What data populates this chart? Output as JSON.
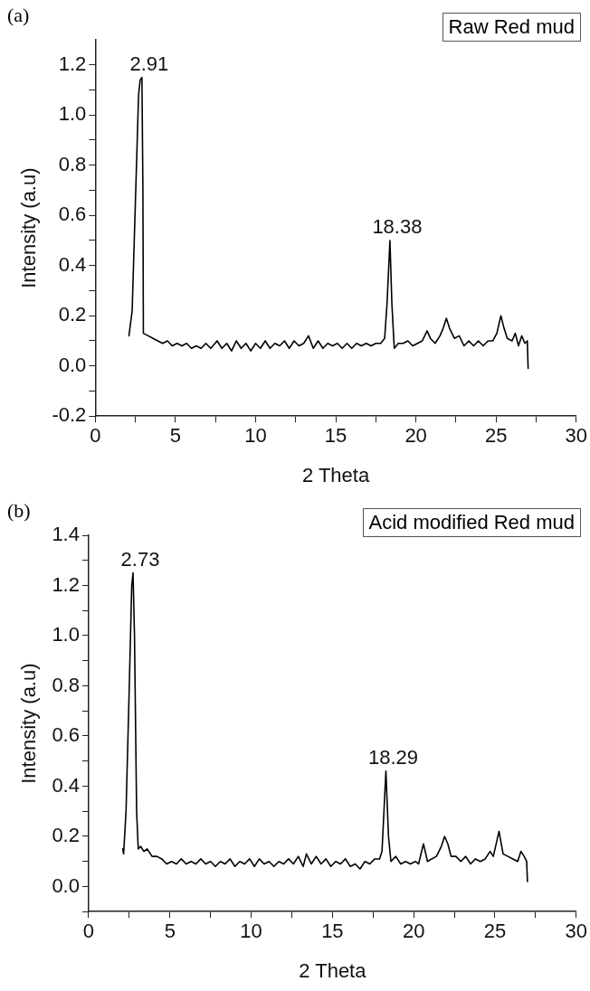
{
  "chart_data": [
    {
      "type": "line",
      "title": "(a)",
      "xlabel": "2 Theta",
      "ylabel": "Intensity (a.u)",
      "xlim": [
        0,
        30
      ],
      "ylim": [
        -0.2,
        1.3
      ],
      "xticks": [
        0,
        {
          "value": 2.5,
          "label": null
        },
        5,
        {
          "value": 7.5,
          "label": null
        },
        10,
        {
          "value": 12.5,
          "label": null
        },
        15,
        {
          "value": 17.5,
          "label": null
        },
        20,
        {
          "value": 22.5,
          "label": null
        },
        25,
        {
          "value": 27.5,
          "label": null
        },
        30
      ],
      "yticks": [
        {
          "value": -0.2,
          "label": "-0.2"
        },
        {
          "value": -0.1,
          "label": null
        },
        {
          "value": 0,
          "label": "0.0"
        },
        {
          "value": 0.1,
          "label": null
        },
        0.2,
        {
          "value": 0.3,
          "label": null
        },
        0.4,
        {
          "value": 0.5,
          "label": null
        },
        0.6,
        {
          "value": 0.7,
          "label": null
        },
        0.8,
        {
          "value": 0.9,
          "label": null
        },
        {
          "value": 1,
          "label": "1.0"
        },
        {
          "value": 1.1,
          "label": null
        },
        1.2
      ],
      "grid": false,
      "legend": false,
      "marker": "none",
      "line_style": "solid",
      "annotations": [
        "Raw Red mud",
        {
          "text": "2.91",
          "x": 2.91,
          "y": 1.15
        },
        {
          "text": "18.38",
          "x": 18.38,
          "y": 0.5
        }
      ],
      "series": [
        {
          "color": "#000000",
          "x": [
            2.1,
            2.3,
            2.5,
            2.7,
            2.8,
            2.91,
            2.97,
            3.0,
            3.3,
            3.6,
            3.9,
            4.2,
            4.5,
            4.8,
            5.1,
            5.4,
            5.7,
            6.0,
            6.3,
            6.6,
            6.9,
            7.2,
            7.6,
            7.9,
            8.2,
            8.5,
            8.8,
            9.1,
            9.4,
            9.7,
            10.0,
            10.3,
            10.6,
            10.9,
            11.2,
            11.5,
            11.8,
            12.1,
            12.4,
            12.7,
            13.0,
            13.3,
            13.6,
            13.9,
            14.2,
            14.5,
            14.8,
            15.1,
            15.4,
            15.7,
            16.0,
            16.3,
            16.6,
            16.9,
            17.2,
            17.5,
            17.8,
            18.05,
            18.2,
            18.38,
            18.5,
            18.65,
            18.9,
            19.2,
            19.5,
            19.8,
            20.1,
            20.4,
            20.7,
            20.9,
            21.2,
            21.5,
            21.7,
            21.9,
            22.1,
            22.4,
            22.7,
            23.0,
            23.3,
            23.6,
            23.9,
            24.2,
            24.5,
            24.8,
            25.05,
            25.3,
            25.5,
            25.7,
            26.0,
            26.2,
            26.4,
            26.6,
            26.8,
            26.95,
            27.0
          ],
          "values": [
            0.12,
            0.22,
            0.65,
            1.08,
            1.14,
            1.15,
            0.7,
            0.13,
            0.12,
            0.11,
            0.1,
            0.09,
            0.1,
            0.08,
            0.09,
            0.08,
            0.09,
            0.07,
            0.08,
            0.07,
            0.09,
            0.07,
            0.1,
            0.07,
            0.09,
            0.06,
            0.1,
            0.07,
            0.09,
            0.06,
            0.09,
            0.07,
            0.1,
            0.07,
            0.09,
            0.08,
            0.1,
            0.07,
            0.1,
            0.08,
            0.09,
            0.12,
            0.07,
            0.1,
            0.07,
            0.09,
            0.08,
            0.09,
            0.07,
            0.09,
            0.07,
            0.09,
            0.08,
            0.09,
            0.08,
            0.09,
            0.09,
            0.11,
            0.25,
            0.5,
            0.25,
            0.07,
            0.09,
            0.09,
            0.1,
            0.08,
            0.09,
            0.1,
            0.14,
            0.11,
            0.09,
            0.12,
            0.15,
            0.19,
            0.15,
            0.11,
            0.12,
            0.08,
            0.1,
            0.08,
            0.1,
            0.08,
            0.1,
            0.1,
            0.13,
            0.2,
            0.15,
            0.11,
            0.1,
            0.13,
            0.08,
            0.12,
            0.09,
            0.1,
            -0.01
          ]
        }
      ]
    },
    {
      "type": "line",
      "title": "(b)",
      "xlabel": "2 Theta",
      "ylabel": "Intensity (a.u)",
      "xlim": [
        0,
        30
      ],
      "ylim": [
        -0.1,
        1.4
      ],
      "xticks": [
        0,
        {
          "value": 2.5,
          "label": null
        },
        5,
        {
          "value": 7.5,
          "label": null
        },
        10,
        {
          "value": 12.5,
          "label": null
        },
        15,
        {
          "value": 17.5,
          "label": null
        },
        20,
        {
          "value": 22.5,
          "label": null
        },
        25,
        {
          "value": 27.5,
          "label": null
        },
        30
      ],
      "yticks": [
        {
          "value": -0.1,
          "label": null
        },
        {
          "value": 0,
          "label": "0.0"
        },
        {
          "value": 0.1,
          "label": null
        },
        0.2,
        {
          "value": 0.3,
          "label": null
        },
        0.4,
        {
          "value": 0.5,
          "label": null
        },
        0.6,
        {
          "value": 0.7,
          "label": null
        },
        0.8,
        {
          "value": 0.9,
          "label": null
        },
        {
          "value": 1,
          "label": "1.0"
        },
        {
          "value": 1.1,
          "label": null
        },
        1.2,
        {
          "value": 1.3,
          "label": null
        },
        1.4
      ],
      "grid": false,
      "legend": false,
      "marker": "none",
      "line_style": "solid",
      "annotations": [
        "Acid modified Red mud",
        {
          "text": "2.73",
          "x": 2.73,
          "y": 1.25
        },
        {
          "text": "18.29",
          "x": 18.29,
          "y": 0.46
        }
      ],
      "series": [
        {
          "color": "#000000",
          "x": [
            2.1,
            2.15,
            2.3,
            2.5,
            2.65,
            2.73,
            2.82,
            2.95,
            3.05,
            3.2,
            3.4,
            3.6,
            3.9,
            4.2,
            4.5,
            4.8,
            5.1,
            5.4,
            5.7,
            6.0,
            6.3,
            6.6,
            6.9,
            7.2,
            7.5,
            7.8,
            8.1,
            8.4,
            8.7,
            9.0,
            9.3,
            9.6,
            9.9,
            10.2,
            10.5,
            10.8,
            11.1,
            11.4,
            11.7,
            12.0,
            12.3,
            12.6,
            12.9,
            13.2,
            13.4,
            13.7,
            14.0,
            14.3,
            14.6,
            14.9,
            15.2,
            15.5,
            15.8,
            16.1,
            16.4,
            16.7,
            17.0,
            17.3,
            17.6,
            17.9,
            18.05,
            18.29,
            18.45,
            18.6,
            18.9,
            19.2,
            19.5,
            19.8,
            20.1,
            20.3,
            20.6,
            20.85,
            21.1,
            21.4,
            21.7,
            21.9,
            22.1,
            22.3,
            22.6,
            22.9,
            23.2,
            23.5,
            23.8,
            24.1,
            24.4,
            24.7,
            24.9,
            25.25,
            25.5,
            25.8,
            26.1,
            26.4,
            26.6,
            26.8,
            26.95,
            27.0
          ],
          "values": [
            0.15,
            0.13,
            0.3,
            0.8,
            1.2,
            1.25,
            1.0,
            0.3,
            0.15,
            0.16,
            0.14,
            0.15,
            0.12,
            0.12,
            0.11,
            0.09,
            0.1,
            0.09,
            0.11,
            0.09,
            0.1,
            0.09,
            0.11,
            0.09,
            0.1,
            0.08,
            0.1,
            0.09,
            0.11,
            0.08,
            0.1,
            0.09,
            0.11,
            0.08,
            0.11,
            0.09,
            0.1,
            0.08,
            0.1,
            0.09,
            0.11,
            0.09,
            0.12,
            0.08,
            0.13,
            0.09,
            0.12,
            0.09,
            0.11,
            0.08,
            0.1,
            0.09,
            0.11,
            0.08,
            0.09,
            0.07,
            0.1,
            0.09,
            0.11,
            0.11,
            0.14,
            0.46,
            0.2,
            0.1,
            0.12,
            0.09,
            0.1,
            0.09,
            0.1,
            0.09,
            0.17,
            0.1,
            0.11,
            0.12,
            0.16,
            0.2,
            0.17,
            0.12,
            0.12,
            0.1,
            0.12,
            0.09,
            0.11,
            0.1,
            0.11,
            0.14,
            0.12,
            0.22,
            0.13,
            0.12,
            0.11,
            0.1,
            0.14,
            0.12,
            0.1,
            0.02
          ]
        }
      ]
    }
  ]
}
